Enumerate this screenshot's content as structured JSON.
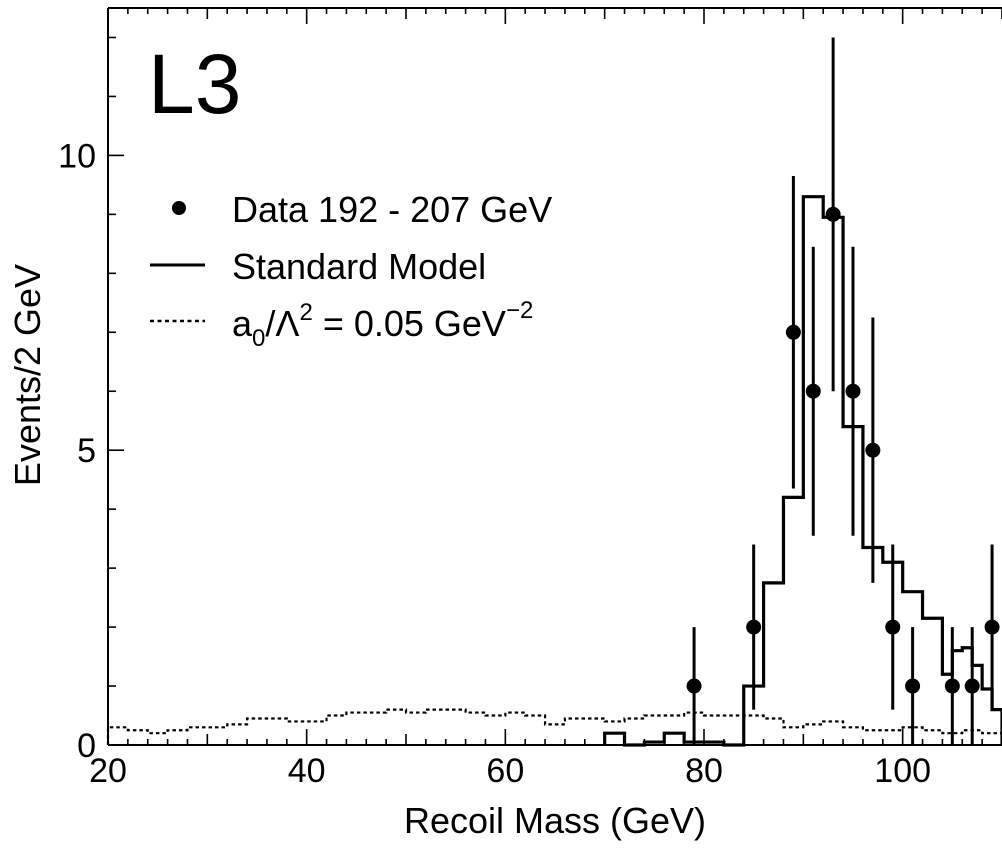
{
  "chart_data": {
    "type": "histogram",
    "experiment_label": "L3",
    "xlabel": "Recoil Mass (GeV)",
    "ylabel": "Events/2 GeV",
    "xlim": [
      20,
      110
    ],
    "ylim": [
      0,
      12.5
    ],
    "x_ticks": [
      20,
      40,
      60,
      80,
      100
    ],
    "y_ticks": [
      0,
      5,
      10
    ],
    "legend": {
      "placement": "top-left",
      "entries": [
        {
          "marker": "dot",
          "label": "Data 192 - 207 GeV"
        },
        {
          "marker": "solid-line",
          "label": "Standard Model"
        },
        {
          "marker": "dotted-line",
          "label_main": "a",
          "label_sub": "0",
          "label_mid": "/Λ",
          "label_sup": "2",
          "label_tail": " = 0.05  GeV",
          "label_sup2": "−2"
        }
      ]
    },
    "data": {
      "name": "Data 192 - 207 GeV",
      "points": [
        {
          "x": 79,
          "y": 1,
          "err_lo": 1.0,
          "err_hi": 1.0
        },
        {
          "x": 85,
          "y": 2,
          "err_lo": 1.4,
          "err_hi": 1.4
        },
        {
          "x": 89,
          "y": 7,
          "err_lo": 2.65,
          "err_hi": 2.65
        },
        {
          "x": 91,
          "y": 6,
          "err_lo": 2.45,
          "err_hi": 2.45
        },
        {
          "x": 93,
          "y": 9,
          "err_lo": 3.0,
          "err_hi": 3.0
        },
        {
          "x": 95,
          "y": 6,
          "err_lo": 2.45,
          "err_hi": 2.45
        },
        {
          "x": 97,
          "y": 5,
          "err_lo": 2.25,
          "err_hi": 2.25
        },
        {
          "x": 99,
          "y": 2,
          "err_lo": 1.4,
          "err_hi": 1.4
        },
        {
          "x": 101,
          "y": 1,
          "err_lo": 1.0,
          "err_hi": 1.0
        },
        {
          "x": 105,
          "y": 1,
          "err_lo": 1.0,
          "err_hi": 1.0
        },
        {
          "x": 107,
          "y": 1,
          "err_lo": 1.0,
          "err_hi": 1.0
        },
        {
          "x": 109,
          "y": 2,
          "err_lo": 1.4,
          "err_hi": 1.4
        }
      ]
    },
    "standard_model": {
      "name": "Standard Model",
      "bin_edges": [
        70,
        72,
        74,
        76,
        78,
        80,
        82,
        84,
        86,
        88,
        90,
        92,
        94,
        96,
        98,
        100,
        102,
        104,
        105,
        106,
        107,
        108,
        109,
        110
      ],
      "values": [
        0.2,
        0,
        0.05,
        0.2,
        0.05,
        0.05,
        0,
        1.0,
        2.75,
        4.2,
        9.3,
        8.95,
        5.4,
        3.35,
        3.1,
        2.6,
        2.15,
        1.2,
        1.6,
        1.65,
        1.35,
        0.95,
        0.6
      ]
    },
    "anomalous": {
      "name": "a0/Λ^2 = 0.05 GeV^-2",
      "bin_edges": [
        20,
        22,
        24,
        26,
        28,
        30,
        32,
        34,
        36,
        38,
        40,
        42,
        44,
        46,
        48,
        50,
        52,
        54,
        56,
        58,
        60,
        62,
        64,
        66,
        68,
        70,
        72,
        74,
        76,
        78,
        80,
        82,
        84,
        86,
        88,
        90,
        92,
        94,
        96,
        98,
        100,
        102,
        104,
        106,
        108,
        110
      ],
      "values": [
        0.3,
        0.25,
        0.2,
        0.25,
        0.3,
        0.3,
        0.35,
        0.45,
        0.45,
        0.4,
        0.4,
        0.5,
        0.55,
        0.55,
        0.6,
        0.55,
        0.6,
        0.6,
        0.55,
        0.5,
        0.55,
        0.5,
        0.35,
        0.45,
        0.45,
        0.4,
        0.45,
        0.5,
        0.5,
        0.55,
        0.5,
        0.5,
        0.5,
        0.45,
        0.3,
        0.35,
        0.4,
        0.3,
        0.25,
        0.25,
        0.3,
        0.25,
        0.2,
        0.25,
        0.2
      ]
    }
  }
}
